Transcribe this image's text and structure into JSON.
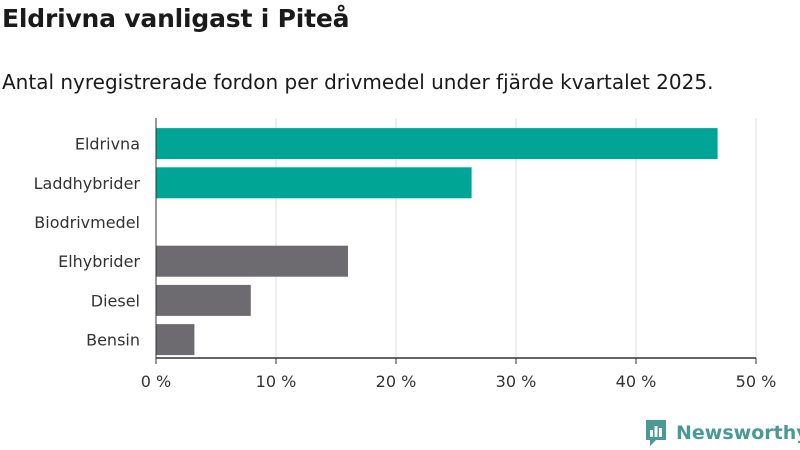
{
  "title": "Eldrivna vanligast i Piteå",
  "subtitle": "Antal nyregistrerade fordon per drivmedel under fjärde kvartalet 2025.",
  "brand": {
    "name": "Newsworthy",
    "color": "#4a9a94",
    "logo": "newsworthy-logo"
  },
  "chart_data": {
    "type": "bar",
    "orientation": "horizontal",
    "categories": [
      "Eldrivna",
      "Laddhybrider",
      "Biodrivmedel",
      "Elhybrider",
      "Diesel",
      "Bensin"
    ],
    "values": [
      46.8,
      26.3,
      0,
      16.0,
      7.9,
      3.2
    ],
    "colors": [
      "#00a596",
      "#00a596",
      "#00a596",
      "#6d6b70",
      "#6d6b70",
      "#6d6b70"
    ],
    "xlim": [
      0,
      50
    ],
    "xticks": [
      0,
      10,
      20,
      30,
      40,
      50
    ],
    "xtick_labels": [
      "0 %",
      "10 %",
      "20 %",
      "30 %",
      "40 %",
      "50 %"
    ],
    "unit": "%",
    "grid": true,
    "xlabel": "",
    "ylabel": ""
  }
}
